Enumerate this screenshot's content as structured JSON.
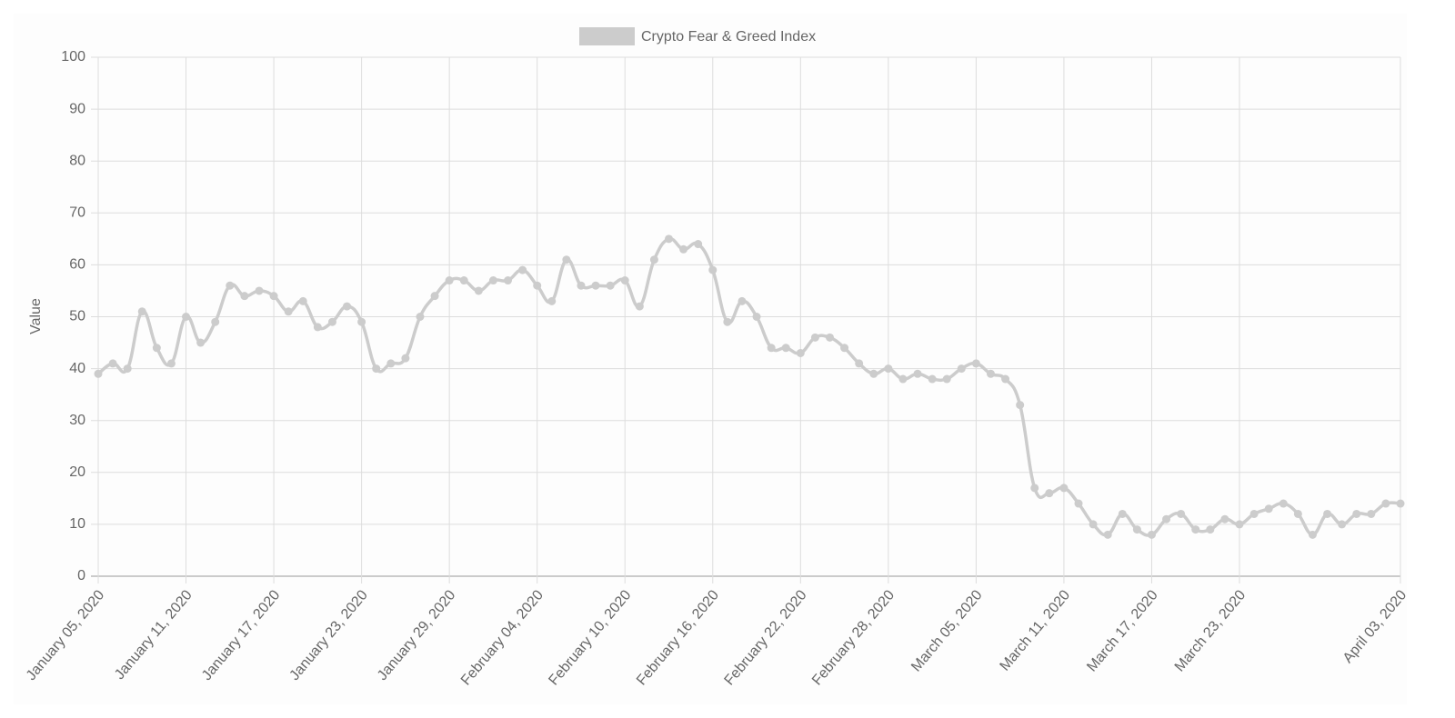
{
  "chart_data": {
    "type": "line",
    "y_label": "Value",
    "categories": [
      "January 05, 2020",
      null,
      null,
      null,
      null,
      null,
      "January 11, 2020",
      null,
      null,
      null,
      null,
      null,
      "January 17, 2020",
      null,
      null,
      null,
      null,
      null,
      "January 23, 2020",
      null,
      null,
      null,
      null,
      null,
      "January 29, 2020",
      null,
      null,
      null,
      null,
      null,
      "February 04, 2020",
      null,
      null,
      null,
      null,
      null,
      "February 10, 2020",
      null,
      null,
      null,
      null,
      null,
      "February 16, 2020",
      null,
      null,
      null,
      null,
      null,
      "February 22, 2020",
      null,
      null,
      null,
      null,
      null,
      "February 28, 2020",
      null,
      null,
      null,
      null,
      null,
      "March 05, 2020",
      null,
      null,
      null,
      null,
      null,
      "March 11, 2020",
      null,
      null,
      null,
      null,
      null,
      "March 17, 2020",
      null,
      null,
      null,
      null,
      null,
      "March 23, 2020",
      null,
      null,
      null,
      null,
      null,
      null,
      null,
      null,
      null,
      null,
      "April 03, 2020"
    ],
    "series": [
      {
        "name": "Crypto Fear & Greed Index",
        "color": "#cccccc",
        "values": [
          39,
          41,
          40,
          51,
          44,
          41,
          50,
          45,
          49,
          56,
          54,
          55,
          54,
          51,
          53,
          48,
          49,
          52,
          49,
          40,
          41,
          42,
          50,
          54,
          57,
          57,
          55,
          57,
          57,
          59,
          56,
          53,
          61,
          56,
          56,
          56,
          57,
          52,
          61,
          65,
          63,
          64,
          59,
          49,
          53,
          50,
          44,
          44,
          43,
          46,
          46,
          44,
          41,
          39,
          40,
          38,
          39,
          38,
          38,
          40,
          41,
          39,
          38,
          33,
          17,
          16,
          17,
          14,
          10,
          8,
          12,
          9,
          8,
          11,
          12,
          9,
          9,
          11,
          10,
          12,
          13,
          14,
          12,
          8,
          12,
          10,
          12,
          12,
          14,
          14
        ]
      }
    ],
    "ylim": [
      0,
      100
    ],
    "yticks": [
      0,
      10,
      20,
      30,
      40,
      50,
      60,
      70,
      80,
      90,
      100
    ],
    "grid": true,
    "legend": "top"
  }
}
